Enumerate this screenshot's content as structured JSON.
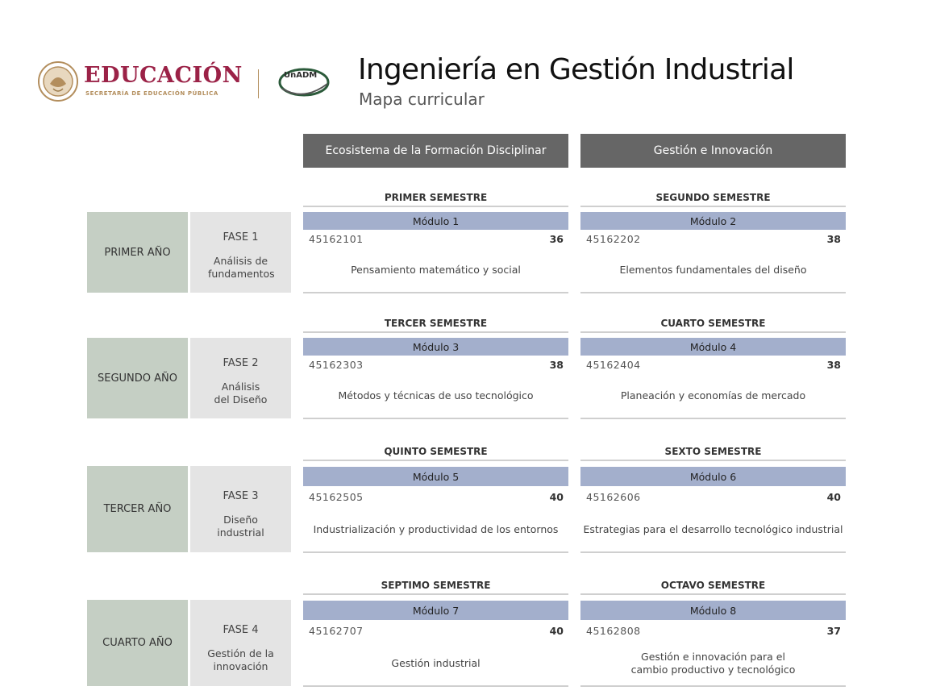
{
  "header": {
    "brand_word": "EDUCACIÓN",
    "brand_sub": "SECRETARÍA DE EDUCACIÓN PÚBLICA",
    "unadm": "UnADM",
    "title": "Ingeniería en Gestión Industrial",
    "subtitle": "Mapa curricular"
  },
  "columns": [
    "Ecosistema de la Formación Disciplinar",
    "Gestión e Innovación"
  ],
  "rows": [
    {
      "year": "PRIMER AÑO",
      "phase": "FASE 1",
      "phase_name": "Análisis de fundamentos",
      "sems": [
        {
          "title": "PRIMER SEMESTRE",
          "module": "Módulo 1",
          "code": "45162101",
          "credits": "36",
          "subject": "Pensamiento matemático y social"
        },
        {
          "title": "SEGUNDO SEMESTRE",
          "module": "Módulo 2",
          "code": "45162202",
          "credits": "38",
          "subject": "Elementos fundamentales del diseño"
        }
      ]
    },
    {
      "year": "SEGUNDO AÑO",
      "phase": "FASE 2",
      "phase_name": "Análisis del Diseño",
      "sems": [
        {
          "title": "TERCER SEMESTRE",
          "module": "Módulo 3",
          "code": "45162303",
          "credits": "38",
          "subject": "Métodos y técnicas de uso tecnológico"
        },
        {
          "title": "CUARTO SEMESTRE",
          "module": "Módulo 4",
          "code": "45162404",
          "credits": "38",
          "subject": "Planeación y economías de mercado"
        }
      ]
    },
    {
      "year": "TERCER AÑO",
      "phase": "FASE 3",
      "phase_name": "Diseño industrial",
      "sems": [
        {
          "title": "QUINTO SEMESTRE",
          "module": "Módulo 5",
          "code": "45162505",
          "credits": "40",
          "subject": "Industrialización y productividad de los entornos"
        },
        {
          "title": "SEXTO SEMESTRE",
          "module": "Módulo 6",
          "code": "45162606",
          "credits": "40",
          "subject": "Estrategias para el desarrollo tecnológico industrial"
        }
      ]
    },
    {
      "year": "CUARTO AÑO",
      "phase": "FASE 4",
      "phase_name": "Gestión de la innovación",
      "sems": [
        {
          "title": "SEPTIMO SEMESTRE",
          "module": "Módulo 7",
          "code": "45162707",
          "credits": "40",
          "subject": "Gestión industrial"
        },
        {
          "title": "OCTAVO SEMESTRE",
          "module": "Módulo 8",
          "code": "45162808",
          "credits": "37",
          "subject": "Gestión e innovación para el cambio productivo y tecnológico"
        }
      ]
    }
  ]
}
